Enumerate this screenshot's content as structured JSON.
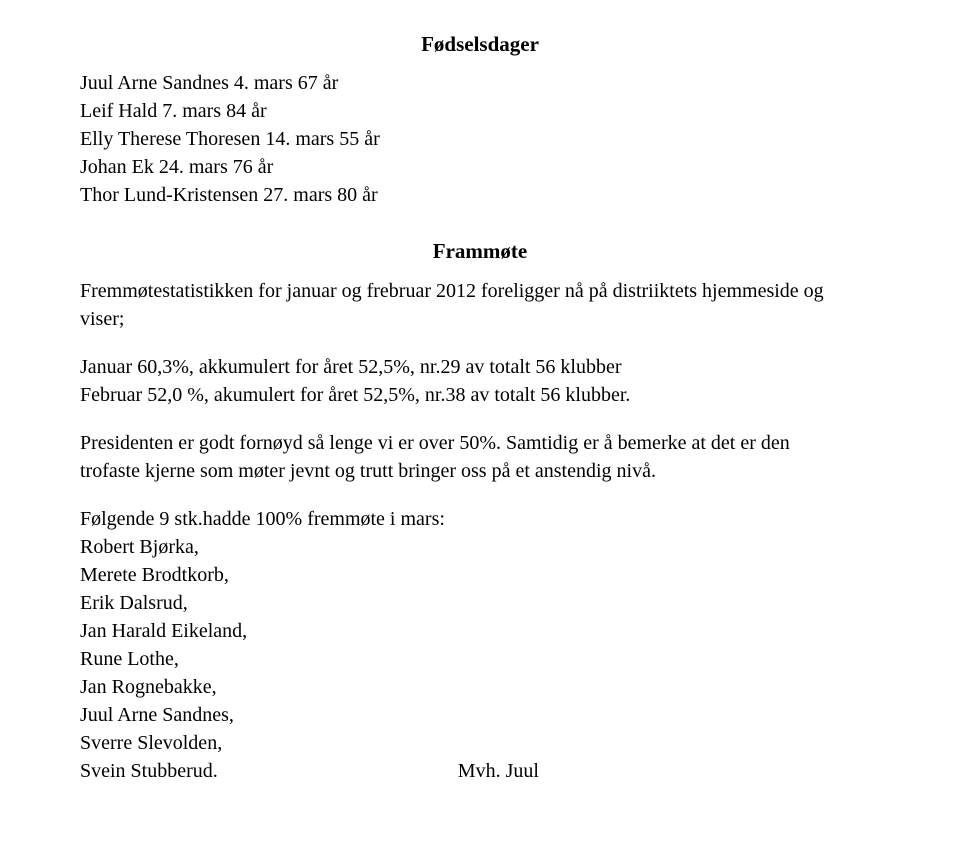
{
  "headings": {
    "birthdays": "Fødselsdager",
    "attendance": "Frammøte"
  },
  "birthdays": {
    "line1": "Juul Arne Sandnes 4. mars 67 år",
    "line2": "Leif Hald 7. mars 84 år",
    "line3": "Elly Therese Thoresen 14. mars 55 år",
    "line4": "Johan Ek 24. mars 76 år",
    "line5": "Thor Lund-Kristensen 27. mars 80 år"
  },
  "attendance": {
    "intro1": "Fremmøtestatistikken for januar og frebruar 2012 foreligger nå på distriiktets hjemmeside og",
    "intro2": "viser;",
    "jan": "Januar 60,3%, akkumulert for året 52,5%, nr.29 av totalt 56 klubber",
    "feb": "Februar 52,0 %, akumulert for året 52,5%, nr.38 av totalt 56 klubber.",
    "president1": "Presidenten er godt fornøyd så lenge vi er over 50%. Samtidig er å bemerke at det er den",
    "president2": "trofaste kjerne som møter jevnt og trutt bringer oss på et anstendig nivå.",
    "list_head": "Følgende 9 stk.hadde 100% fremmøte i mars:",
    "n1": "Robert Bjørka,",
    "n2": "Merete Brodtkorb,",
    "n3": "Erik Dalsrud,",
    "n4": "Jan Harald Eikeland,",
    "n5": "Rune Lothe,",
    "n6": "Jan Rognebakke,",
    "n7": "Juul Arne Sandnes,",
    "n8": "Sverre Slevolden,",
    "n9": "Svein Stubberud.",
    "signoff": "Mvh.  Juul"
  }
}
